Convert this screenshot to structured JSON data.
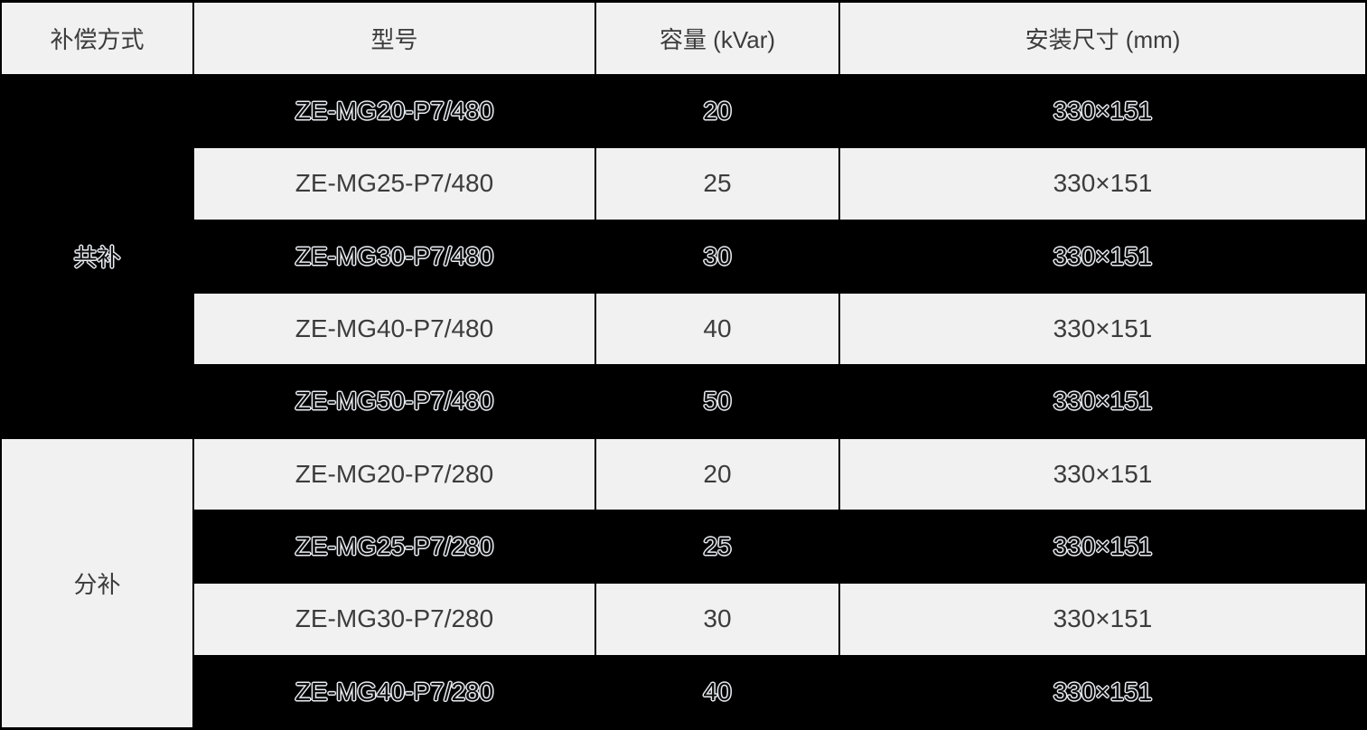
{
  "table": {
    "title": "capacitor-spec-table",
    "columns": {
      "compensation": "补偿方式",
      "model": "型号",
      "capacity": "容量 (kVar)",
      "dimensions": "安装尺寸 (mm)"
    },
    "groups": [
      {
        "label": "共补",
        "rows": [
          {
            "model": "ZE-MG20-P7/480",
            "capacity": "20",
            "size": "330×151"
          },
          {
            "model": "ZE-MG25-P7/480",
            "capacity": "25",
            "size": "330×151"
          },
          {
            "model": "ZE-MG30-P7/480",
            "capacity": "30",
            "size": "330×151"
          },
          {
            "model": "ZE-MG40-P7/480",
            "capacity": "40",
            "size": "330×151"
          },
          {
            "model": "ZE-MG50-P7/480",
            "capacity": "50",
            "size": "330×151"
          }
        ]
      },
      {
        "label": "分补",
        "rows": [
          {
            "model": "ZE-MG20-P7/280",
            "capacity": "20",
            "size": "330×151"
          },
          {
            "model": "ZE-MG25-P7/280",
            "capacity": "25",
            "size": "330×151"
          },
          {
            "model": "ZE-MG30-P7/280",
            "capacity": "30",
            "size": "330×151"
          },
          {
            "model": "ZE-MG40-P7/280",
            "capacity": "40",
            "size": "330×151"
          }
        ]
      }
    ],
    "colors": {
      "row_dark_bg": "#000000",
      "row_light_bg": "#f1f1f1",
      "text_dark": "#3c3c3c",
      "outline_text": "#e9edf2",
      "border": "#000000"
    }
  }
}
